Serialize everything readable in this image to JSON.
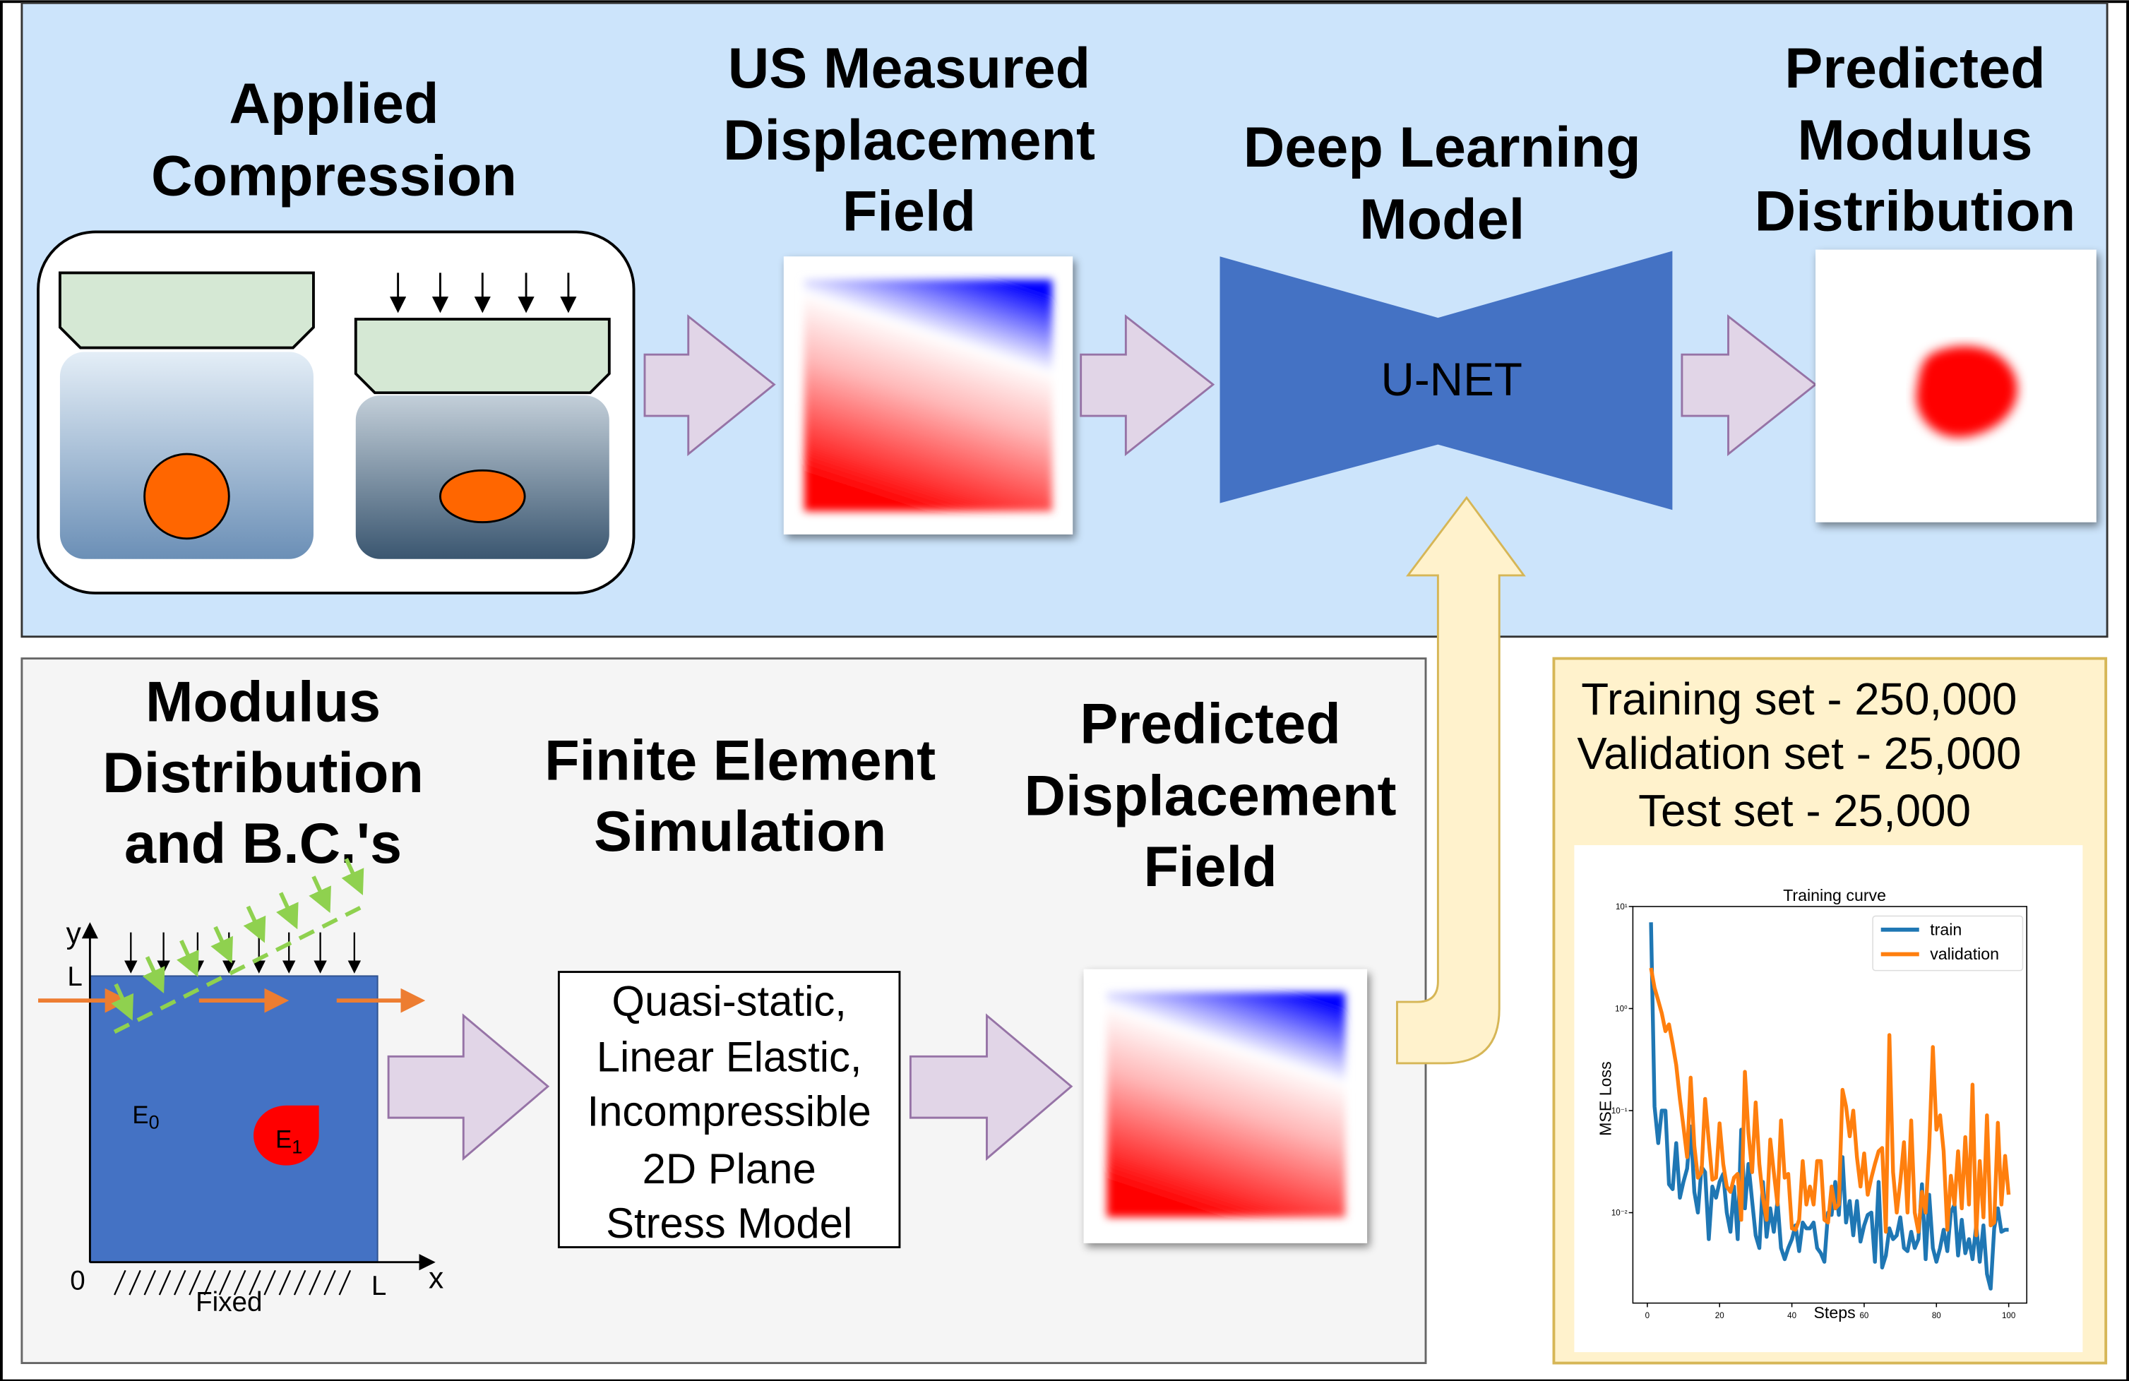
{
  "top_panel": {
    "applied_compression": [
      "Applied",
      "Compression"
    ],
    "us_measured": [
      "US Measured",
      "Displacement",
      "Field"
    ],
    "deep_learning": [
      "Deep Learning",
      "Model"
    ],
    "unet_label": "U-NET",
    "predicted_modulus": [
      "Predicted",
      "Modulus",
      "Distribution"
    ]
  },
  "bottom_panel": {
    "modulus_bc": [
      "Modulus",
      "Distribution",
      "and B.C.'s"
    ],
    "fe_simulation": [
      "Finite Element",
      "Simulation"
    ],
    "predicted_displacement": [
      "Predicted",
      "Displacement",
      "Field"
    ],
    "model_box": [
      "Quasi-static,",
      "Linear Elastic,",
      "Incompressible",
      "2D Plane",
      "Stress Model"
    ],
    "diagram": {
      "y_axis": "y",
      "x_axis": "x",
      "origin": "0",
      "y_L": "L",
      "x_L": "L",
      "fixed": "Fixed",
      "e0": "E",
      "e0_sub": "0",
      "e1": "E",
      "e1_sub": "1"
    }
  },
  "dataset_panel": {
    "lines": [
      "Training set - 250,000",
      "Validation set - 25,000",
      "Test set - 25,000"
    ]
  },
  "colors": {
    "top_bg": "#cce4fb",
    "bottom_bg": "#f5f5f5",
    "dataset_bg": "#fff2cc",
    "unet": "#4472c4",
    "train": "#1f77b4",
    "validation": "#ff7f0e"
  },
  "chart_data": {
    "type": "line",
    "title": "Training curve",
    "xlabel": "Steps",
    "ylabel": "MSE Loss",
    "yscale": "log",
    "xlim": [
      -4,
      105
    ],
    "ylim": [
      0.0013,
      10
    ],
    "x_ticks": [
      0,
      20,
      40,
      60,
      80,
      100
    ],
    "y_ticks": [
      {
        "value": 10,
        "label": "10¹"
      },
      {
        "value": 1,
        "label": "10⁰"
      },
      {
        "value": 0.1,
        "label": "10⁻¹"
      },
      {
        "value": 0.01,
        "label": "10⁻²"
      }
    ],
    "legend": "top-right",
    "x_start": 1,
    "series": [
      {
        "name": "train",
        "color": "#1f77b4",
        "values": [
          7,
          0.11,
          0.048,
          0.1,
          0.1,
          0.019,
          0.017,
          0.048,
          0.014,
          0.02,
          0.027,
          0.07,
          0.016,
          0.01,
          0.028,
          0.025,
          0.0055,
          0.018,
          0.014,
          0.02,
          0.024,
          0.01,
          0.0065,
          0.018,
          0.0055,
          0.065,
          0.011,
          0.03,
          0.013,
          0.006,
          0.0045,
          0.02,
          0.0058,
          0.011,
          0.0065,
          0.013,
          0.0045,
          0.0035,
          0.0045,
          0.0055,
          0.0075,
          0.0042,
          0.008,
          0.007,
          0.007,
          0.008,
          0.0045,
          0.004,
          0.0033,
          0.01,
          0.0095,
          0.02,
          0.0095,
          0.035,
          0.008,
          0.013,
          0.006,
          0.013,
          0.0052,
          0.0075,
          0.0095,
          0.01,
          0.0033,
          0.02,
          0.0029,
          0.0038,
          0.007,
          0.0055,
          0.006,
          0.009,
          0.0045,
          0.0042,
          0.0065,
          0.0045,
          0.0055,
          0.019,
          0.0035,
          0.015,
          0.0045,
          0.0033,
          0.0045,
          0.0068,
          0.0042,
          0.01,
          0.012,
          0.0038,
          0.0085,
          0.004,
          0.0055,
          0.0035,
          0.0075,
          0.0033,
          0.0075,
          0.0025,
          0.0018,
          0.007,
          0.011,
          0.0065,
          0.0068,
          0.0068
        ]
      },
      {
        "name": "validation",
        "color": "#ff7f0e",
        "values": [
          2.5,
          1.6,
          1.2,
          0.9,
          0.6,
          0.7,
          0.45,
          0.28,
          0.13,
          0.07,
          0.035,
          0.21,
          0.045,
          0.022,
          0.025,
          0.13,
          0.05,
          0.021,
          0.022,
          0.075,
          0.03,
          0.018,
          0.016,
          0.022,
          0.024,
          0.0085,
          0.24,
          0.06,
          0.025,
          0.12,
          0.03,
          0.014,
          0.0085,
          0.052,
          0.025,
          0.012,
          0.08,
          0.022,
          0.024,
          0.007,
          0.0068,
          0.0085,
          0.032,
          0.012,
          0.018,
          0.012,
          0.032,
          0.032,
          0.0085,
          0.008,
          0.018,
          0.011,
          0.012,
          0.16,
          0.11,
          0.056,
          0.1,
          0.035,
          0.018,
          0.038,
          0.015,
          0.022,
          0.03,
          0.04,
          0.043,
          0.0065,
          0.55,
          0.025,
          0.01,
          0.02,
          0.049,
          0.01,
          0.08,
          0.01,
          0.0065,
          0.016,
          0.01,
          0.043,
          0.42,
          0.065,
          0.09,
          0.04,
          0.0068,
          0.023,
          0.012,
          0.04,
          0.011,
          0.055,
          0.012,
          0.18,
          0.006,
          0.032,
          0.009,
          0.09,
          0.0075,
          0.008,
          0.076,
          0.012,
          0.036,
          0.015
        ]
      }
    ]
  }
}
